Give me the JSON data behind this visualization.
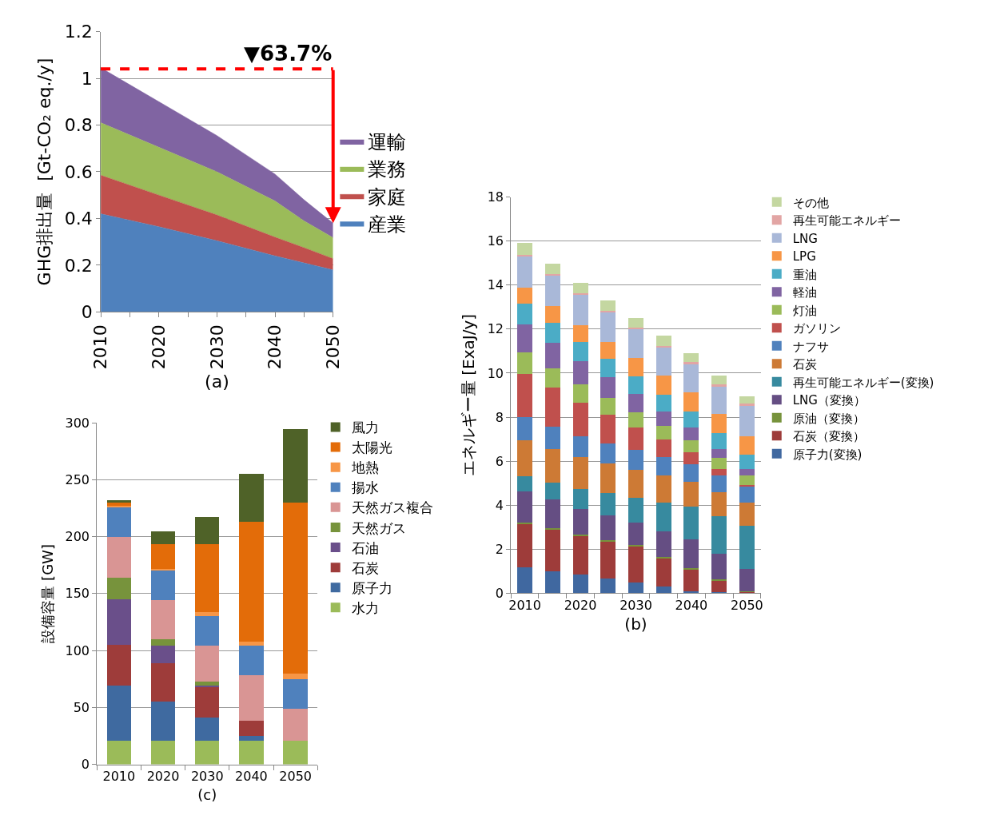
{
  "chart_data": [
    {
      "type": "area",
      "stacked": true,
      "xlabel": "(a)",
      "ylabel": "GHG排出量  [Gt-CO₂ eq./y]",
      "x": [
        2010,
        2020,
        2030,
        2040,
        2045,
        2050
      ],
      "series": [
        {
          "name": "産業",
          "color": "#4f81bd",
          "values": [
            0.42,
            0.365,
            0.305,
            0.24,
            0.21,
            0.18
          ]
        },
        {
          "name": "家庭",
          "color": "#c0504d",
          "values": [
            0.165,
            0.135,
            0.11,
            0.08,
            0.065,
            0.048
          ]
        },
        {
          "name": "業務",
          "color": "#9bbb59",
          "values": [
            0.225,
            0.205,
            0.185,
            0.155,
            0.115,
            0.09
          ]
        },
        {
          "name": "運輸",
          "color": "#8064a2",
          "values": [
            0.235,
            0.195,
            0.155,
            0.115,
            0.09,
            0.062
          ]
        }
      ],
      "xlim": [
        2010,
        2050
      ],
      "xticks": [
        2010,
        {
          "value": 2015,
          "label": null
        },
        2020,
        {
          "value": 2025,
          "label": null
        },
        2030,
        {
          "value": 2035,
          "label": null
        },
        2040,
        {
          "value": 2045,
          "label": null
        },
        2050
      ],
      "ylim": [
        0,
        1.2
      ],
      "yticks": [
        0,
        0.2,
        0.4,
        0.6,
        0.8,
        1,
        1.2
      ],
      "ref_lines": [
        {
          "axis": "y",
          "value": 1.04,
          "color": "#ff0000",
          "line_style": "dashed"
        }
      ],
      "annotations": [
        {
          "text": "▼63.7%",
          "x": 2050,
          "y": 0.38
        }
      ],
      "grid": "y",
      "legend": "right"
    },
    {
      "type": "bar",
      "stacked": true,
      "xlabel": "(b)",
      "ylabel": "エネルギー量 [ExaJ/y]",
      "categories": [
        "2010",
        null,
        "2020",
        null,
        "2030",
        null,
        "2040",
        null,
        "2050"
      ],
      "series": [
        {
          "name": "原子力(変換)",
          "color": "#4068a0",
          "values": [
            1.18,
            1.0,
            0.83,
            0.66,
            0.49,
            0.3,
            0.1,
            0.05,
            0.02
          ]
        },
        {
          "name": "石炭（変換）",
          "color": "#9e3c3a",
          "values": [
            1.97,
            1.92,
            1.79,
            1.7,
            1.65,
            1.31,
            1.01,
            0.54,
            0.05
          ]
        },
        {
          "name": "原油（変換）",
          "color": "#77933c",
          "values": [
            0.06,
            0.05,
            0.05,
            0.05,
            0.05,
            0.05,
            0.04,
            0.04,
            0.02
          ]
        },
        {
          "name": "LNG（変換）",
          "color": "#654e83",
          "values": [
            1.42,
            1.28,
            1.17,
            1.12,
            1.0,
            1.15,
            1.28,
            1.15,
            1.01
          ]
        },
        {
          "name": "再生可能エネルギー(変換)",
          "color": "#378a9f",
          "values": [
            0.69,
            0.77,
            0.88,
            1.01,
            1.16,
            1.32,
            1.5,
            1.72,
            1.95
          ]
        },
        {
          "name": "石炭",
          "color": "#cd7a35",
          "values": [
            1.62,
            1.54,
            1.45,
            1.35,
            1.26,
            1.21,
            1.14,
            1.1,
            1.07
          ]
        },
        {
          "name": "ナフサ",
          "color": "#4f81bd",
          "values": [
            1.05,
            1.0,
            0.95,
            0.92,
            0.89,
            0.83,
            0.77,
            0.74,
            0.72
          ]
        },
        {
          "name": "ガソリン",
          "color": "#c0504d",
          "values": [
            1.98,
            1.77,
            1.54,
            1.29,
            1.03,
            0.8,
            0.56,
            0.31,
            0.08
          ]
        },
        {
          "name": "灯油",
          "color": "#9bbb59",
          "values": [
            0.98,
            0.9,
            0.83,
            0.76,
            0.7,
            0.62,
            0.54,
            0.51,
            0.44
          ]
        },
        {
          "name": "軽油",
          "color": "#8064a2",
          "values": [
            1.25,
            1.16,
            1.05,
            0.94,
            0.82,
            0.68,
            0.59,
            0.4,
            0.29
          ]
        },
        {
          "name": "重油",
          "color": "#4bacc6",
          "values": [
            0.97,
            0.91,
            0.89,
            0.84,
            0.82,
            0.76,
            0.71,
            0.7,
            0.66
          ]
        },
        {
          "name": "LPG",
          "color": "#f79646",
          "values": [
            0.7,
            0.73,
            0.76,
            0.79,
            0.8,
            0.87,
            0.9,
            0.87,
            0.83
          ]
        },
        {
          "name": "LNG",
          "color": "#a9b8d8",
          "values": [
            1.45,
            1.42,
            1.38,
            1.36,
            1.34,
            1.3,
            1.3,
            1.3,
            1.41
          ]
        },
        {
          "name": "再生可能エネルギー",
          "color": "#e2a5a4",
          "values": [
            0.05,
            0.05,
            0.05,
            0.05,
            0.05,
            0.05,
            0.05,
            0.05,
            0.05
          ]
        },
        {
          "name": "その他",
          "color": "#c4d7a1",
          "values": [
            0.53,
            0.49,
            0.49,
            0.46,
            0.43,
            0.44,
            0.41,
            0.41,
            0.34
          ]
        }
      ],
      "ylim": [
        0,
        18
      ],
      "yticks": [
        0,
        2,
        4,
        6,
        8,
        10,
        12,
        14,
        16,
        18
      ],
      "grid": "y",
      "legend": "right"
    },
    {
      "type": "bar",
      "stacked": true,
      "xlabel": "(c)",
      "ylabel": "設備容量 [GW]",
      "categories": [
        "2010",
        "2020",
        "2030",
        "2040",
        "2050"
      ],
      "series": [
        {
          "name": "水力",
          "color": "#9bbb59",
          "values": [
            21,
            21,
            21,
            21,
            21
          ]
        },
        {
          "name": "原子力",
          "color": "#3f6aa0",
          "values": [
            48,
            34,
            20,
            4,
            0
          ]
        },
        {
          "name": "石炭",
          "color": "#9e3c3a",
          "values": [
            36,
            34,
            27,
            13.5,
            0
          ]
        },
        {
          "name": "石油",
          "color": "#6a4f8a",
          "values": [
            40,
            15,
            1.5,
            0,
            0
          ]
        },
        {
          "name": "天然ガス",
          "color": "#77933c",
          "values": [
            19,
            6,
            3,
            0,
            0
          ]
        },
        {
          "name": "天然ガス複合",
          "color": "#d99594",
          "values": [
            36,
            34,
            32,
            39.5,
            27.5
          ]
        },
        {
          "name": "揚水",
          "color": "#4f81bd",
          "values": [
            26,
            26,
            26,
            26,
            26
          ]
        },
        {
          "name": "地熱",
          "color": "#f79646",
          "values": [
            1,
            1.5,
            3,
            4,
            5.5
          ]
        },
        {
          "name": "太陽光",
          "color": "#e36c09",
          "values": [
            3,
            22,
            60,
            105,
            150
          ]
        },
        {
          "name": "風力",
          "color": "#4f6228",
          "values": [
            2,
            11,
            24,
            42,
            64.5
          ]
        }
      ],
      "ylim": [
        0,
        300
      ],
      "yticks": [
        0,
        50,
        100,
        150,
        200,
        250,
        300
      ],
      "grid": "y",
      "legend": "right"
    }
  ]
}
